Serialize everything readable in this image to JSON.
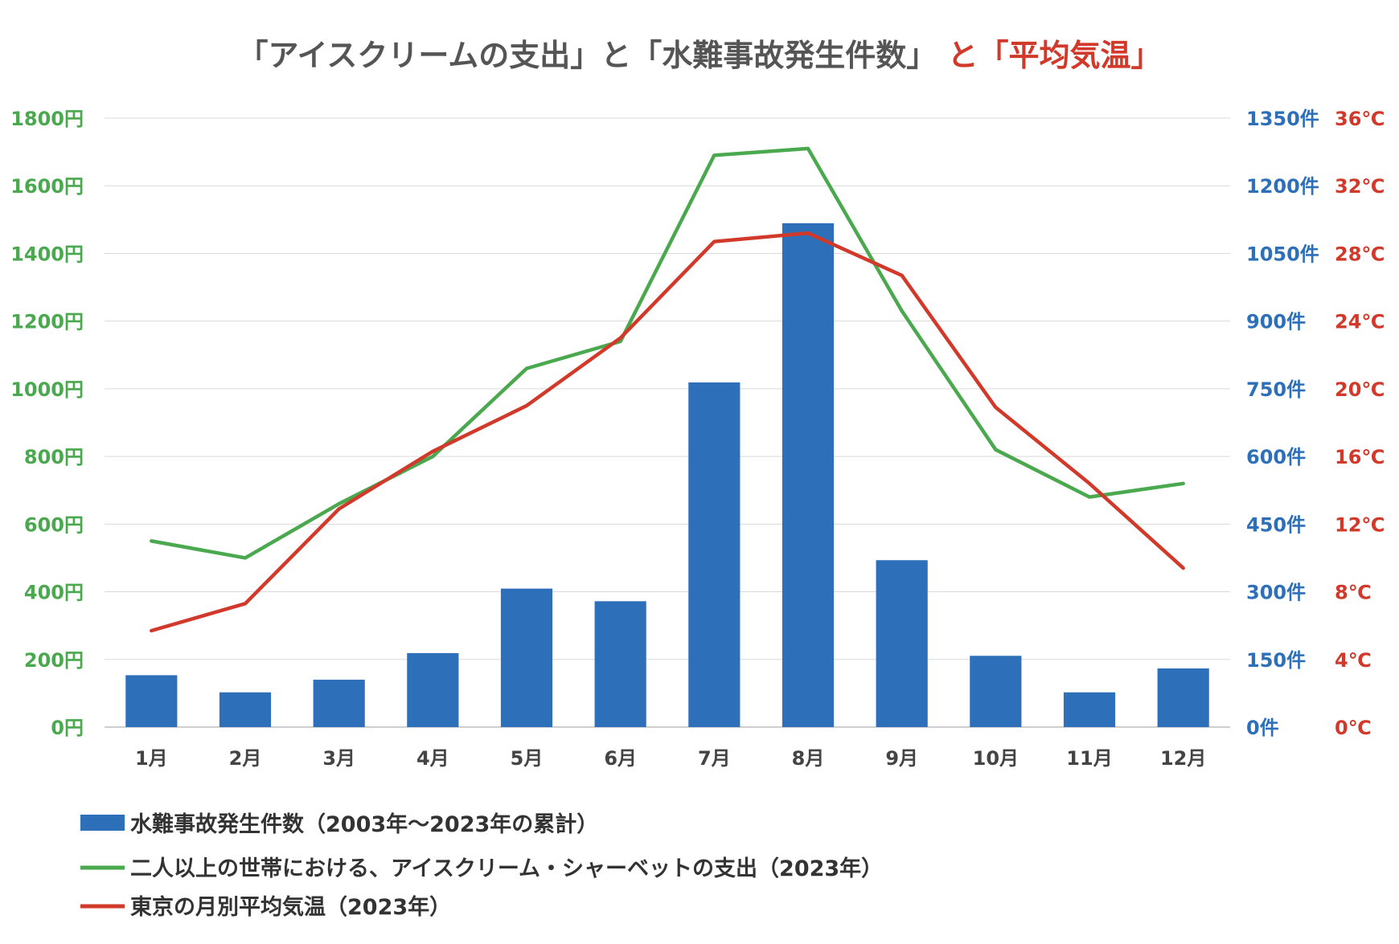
{
  "chart_data": {
    "type": "bar+line",
    "title": {
      "part1": "「アイスクリームの支出」と「水難事故発生件数」",
      "part2": "と「平均気温」"
    },
    "categories": [
      "1月",
      "2月",
      "3月",
      "4月",
      "5月",
      "6月",
      "7月",
      "8月",
      "9月",
      "10月",
      "11月",
      "12月"
    ],
    "axes": {
      "left": {
        "min": 0,
        "max": 1800,
        "step": 200,
        "ticks": [
          "0円",
          "200円",
          "400円",
          "600円",
          "800円",
          "1000円",
          "1200円",
          "1400円",
          "1600円",
          "1800円"
        ],
        "color": "#4aa84e"
      },
      "right1": {
        "min": 0,
        "max": 1350,
        "step": 150,
        "ticks": [
          "0件",
          "150件",
          "300件",
          "450件",
          "600件",
          "750件",
          "900件",
          "1050件",
          "1200件",
          "1350件"
        ],
        "color": "#2e6fba"
      },
      "right2": {
        "min": 0,
        "max": 36,
        "step": 4,
        "ticks": [
          "0℃",
          "4℃",
          "8℃",
          "12℃",
          "16℃",
          "20℃",
          "24℃",
          "28℃",
          "32℃",
          "36℃"
        ],
        "color": "#d13a2a"
      }
    },
    "series": [
      {
        "name": "水難事故発生件数（2003年～2023年の累計）",
        "type": "bar",
        "axis": "right1",
        "color": "#2e6fba",
        "values": [
          115,
          77,
          105,
          164,
          307,
          279,
          764,
          1117,
          370,
          158,
          77,
          130
        ]
      },
      {
        "name": "二人以上の世帯における、アイスクリーム・シャーベットの支出（2023年）",
        "type": "line",
        "axis": "left",
        "color": "#4aa84e",
        "values": [
          550,
          500,
          660,
          800,
          1060,
          1140,
          1690,
          1710,
          1230,
          820,
          680,
          720
        ]
      },
      {
        "name": "東京の月別平均気温（2023年）",
        "type": "line",
        "axis": "right2",
        "color": "#d13a2a",
        "values": [
          5.7,
          7.3,
          12.9,
          16.3,
          19.0,
          23.0,
          28.7,
          29.2,
          26.7,
          18.9,
          14.4,
          9.4
        ]
      }
    ],
    "grid": true,
    "legend_position": "bottom-left"
  }
}
